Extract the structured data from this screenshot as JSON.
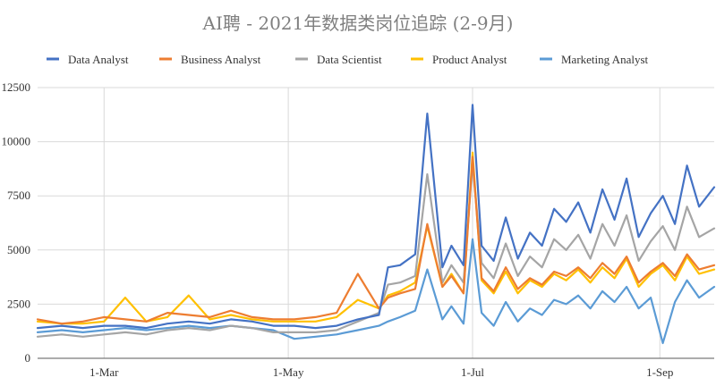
{
  "chart_data": {
    "type": "line",
    "title": "AI聘 - 2021年数据类岗位追踪 (2-9月)",
    "xlabel": "",
    "ylabel": "",
    "x_ticks": [
      "1-Mar",
      "1-May",
      "1-Jul",
      "1-Sep"
    ],
    "x_range": [
      "2021-02-07",
      "2021-09-19"
    ],
    "ylim": [
      0,
      12500
    ],
    "y_ticks": [
      "0",
      "2500",
      "5000",
      "7500",
      "10000",
      "12500"
    ],
    "grid": true,
    "legend_position": "top",
    "colors": {
      "Data Analyst": "#4472c4",
      "Business Analyst": "#ed7d31",
      "Data Scientist": "#a5a5a5",
      "Product Analyst": "#ffc000",
      "Marketing Analyst": "#5b9bd5"
    },
    "series": [
      {
        "name": "Data Analyst",
        "x": [
          "2021-02-07",
          "2021-02-15",
          "2021-02-22",
          "2021-03-01",
          "2021-03-08",
          "2021-03-15",
          "2021-03-22",
          "2021-03-29",
          "2021-04-05",
          "2021-04-12",
          "2021-04-19",
          "2021-04-26",
          "2021-05-03",
          "2021-05-10",
          "2021-05-17",
          "2021-05-24",
          "2021-05-31",
          "2021-06-03",
          "2021-06-07",
          "2021-06-12",
          "2021-06-16",
          "2021-06-21",
          "2021-06-24",
          "2021-06-28",
          "2021-07-01",
          "2021-07-04",
          "2021-07-08",
          "2021-07-12",
          "2021-07-16",
          "2021-07-20",
          "2021-07-24",
          "2021-07-28",
          "2021-08-01",
          "2021-08-05",
          "2021-08-09",
          "2021-08-13",
          "2021-08-17",
          "2021-08-21",
          "2021-08-25",
          "2021-08-29",
          "2021-09-02",
          "2021-09-06",
          "2021-09-10",
          "2021-09-14",
          "2021-09-19"
        ],
        "values": [
          1400,
          1500,
          1400,
          1500,
          1500,
          1400,
          1600,
          1700,
          1600,
          1800,
          1700,
          1500,
          1500,
          1400,
          1500,
          1800,
          2000,
          4200,
          4300,
          4800,
          11300,
          4200,
          5200,
          4300,
          11700,
          5200,
          4500,
          6500,
          4600,
          5800,
          5200,
          6900,
          6300,
          7200,
          5800,
          7800,
          6400,
          8300,
          5600,
          6700,
          7500,
          6200,
          8900,
          7000,
          7900
        ]
      },
      {
        "name": "Business Analyst",
        "x": [
          "2021-02-07",
          "2021-02-15",
          "2021-02-22",
          "2021-03-01",
          "2021-03-08",
          "2021-03-15",
          "2021-03-22",
          "2021-03-29",
          "2021-04-05",
          "2021-04-12",
          "2021-04-19",
          "2021-04-26",
          "2021-05-03",
          "2021-05-10",
          "2021-05-17",
          "2021-05-24",
          "2021-05-31",
          "2021-06-03",
          "2021-06-07",
          "2021-06-12",
          "2021-06-16",
          "2021-06-21",
          "2021-06-24",
          "2021-06-28",
          "2021-07-01",
          "2021-07-04",
          "2021-07-08",
          "2021-07-12",
          "2021-07-16",
          "2021-07-20",
          "2021-07-24",
          "2021-07-28",
          "2021-08-01",
          "2021-08-05",
          "2021-08-09",
          "2021-08-13",
          "2021-08-17",
          "2021-08-21",
          "2021-08-25",
          "2021-08-29",
          "2021-09-02",
          "2021-09-06",
          "2021-09-10",
          "2021-09-14",
          "2021-09-19"
        ],
        "values": [
          1800,
          1600,
          1700,
          1900,
          1800,
          1700,
          2100,
          2000,
          1900,
          2200,
          1900,
          1800,
          1800,
          1900,
          2100,
          3900,
          2300,
          2800,
          3000,
          3200,
          6200,
          3300,
          3800,
          3000,
          9300,
          3700,
          3100,
          4200,
          3200,
          3700,
          3400,
          4000,
          3800,
          4200,
          3700,
          4400,
          3900,
          4700,
          3500,
          4000,
          4400,
          3800,
          4800,
          4100,
          4300
        ]
      },
      {
        "name": "Data Scientist",
        "x": [
          "2021-02-07",
          "2021-02-15",
          "2021-02-22",
          "2021-03-01",
          "2021-03-08",
          "2021-03-15",
          "2021-03-22",
          "2021-03-29",
          "2021-04-05",
          "2021-04-12",
          "2021-04-19",
          "2021-04-26",
          "2021-05-03",
          "2021-05-10",
          "2021-05-17",
          "2021-05-24",
          "2021-05-31",
          "2021-06-03",
          "2021-06-07",
          "2021-06-12",
          "2021-06-16",
          "2021-06-21",
          "2021-06-24",
          "2021-06-28",
          "2021-07-01",
          "2021-07-04",
          "2021-07-08",
          "2021-07-12",
          "2021-07-16",
          "2021-07-20",
          "2021-07-24",
          "2021-07-28",
          "2021-08-01",
          "2021-08-05",
          "2021-08-09",
          "2021-08-13",
          "2021-08-17",
          "2021-08-21",
          "2021-08-25",
          "2021-08-29",
          "2021-09-02",
          "2021-09-06",
          "2021-09-10",
          "2021-09-14",
          "2021-09-19"
        ],
        "values": [
          1000,
          1100,
          1000,
          1100,
          1200,
          1100,
          1300,
          1400,
          1300,
          1500,
          1400,
          1200,
          1200,
          1200,
          1300,
          1700,
          2100,
          3400,
          3500,
          3800,
          8500,
          3500,
          4300,
          3500,
          9000,
          4400,
          3700,
          5300,
          3800,
          4700,
          4200,
          5500,
          5000,
          5700,
          4600,
          6200,
          5200,
          6600,
          4500,
          5400,
          6100,
          5000,
          7000,
          5600,
          6000
        ]
      },
      {
        "name": "Product Analyst",
        "x": [
          "2021-02-07",
          "2021-02-15",
          "2021-02-22",
          "2021-03-01",
          "2021-03-08",
          "2021-03-15",
          "2021-03-22",
          "2021-03-29",
          "2021-04-05",
          "2021-04-12",
          "2021-04-19",
          "2021-04-26",
          "2021-05-03",
          "2021-05-10",
          "2021-05-17",
          "2021-05-24",
          "2021-05-31",
          "2021-06-03",
          "2021-06-07",
          "2021-06-12",
          "2021-06-16",
          "2021-06-21",
          "2021-06-24",
          "2021-06-28",
          "2021-07-01",
          "2021-07-04",
          "2021-07-08",
          "2021-07-12",
          "2021-07-16",
          "2021-07-20",
          "2021-07-24",
          "2021-07-28",
          "2021-08-01",
          "2021-08-05",
          "2021-08-09",
          "2021-08-13",
          "2021-08-17",
          "2021-08-21",
          "2021-08-25",
          "2021-08-29",
          "2021-09-02",
          "2021-09-06",
          "2021-09-10",
          "2021-09-14",
          "2021-09-19"
        ],
        "values": [
          1700,
          1600,
          1600,
          1700,
          2800,
          1700,
          1900,
          2900,
          1800,
          2000,
          1800,
          1700,
          1700,
          1700,
          1900,
          2700,
          2300,
          2900,
          3100,
          3500,
          6100,
          3300,
          3900,
          3000,
          9500,
          3600,
          3000,
          4000,
          3000,
          3600,
          3300,
          3900,
          3600,
          4100,
          3500,
          4200,
          3700,
          4600,
          3300,
          3900,
          4300,
          3600,
          4700,
          3900,
          4100
        ]
      },
      {
        "name": "Marketing Analyst",
        "x": [
          "2021-02-07",
          "2021-02-15",
          "2021-02-22",
          "2021-03-01",
          "2021-03-08",
          "2021-03-15",
          "2021-03-22",
          "2021-03-29",
          "2021-04-05",
          "2021-04-12",
          "2021-04-19",
          "2021-04-26",
          "2021-05-03",
          "2021-05-10",
          "2021-05-17",
          "2021-05-24",
          "2021-05-31",
          "2021-06-03",
          "2021-06-07",
          "2021-06-12",
          "2021-06-16",
          "2021-06-21",
          "2021-06-24",
          "2021-06-28",
          "2021-07-01",
          "2021-07-04",
          "2021-07-08",
          "2021-07-12",
          "2021-07-16",
          "2021-07-20",
          "2021-07-24",
          "2021-07-28",
          "2021-08-01",
          "2021-08-05",
          "2021-08-09",
          "2021-08-13",
          "2021-08-17",
          "2021-08-21",
          "2021-08-25",
          "2021-08-29",
          "2021-09-02",
          "2021-09-06",
          "2021-09-10",
          "2021-09-14",
          "2021-09-19"
        ],
        "values": [
          1200,
          1300,
          1200,
          1300,
          1400,
          1300,
          1400,
          1500,
          1400,
          1500,
          1400,
          1300,
          900,
          1000,
          1100,
          1300,
          1500,
          1700,
          1900,
          2200,
          4100,
          1800,
          2400,
          1600,
          5500,
          2100,
          1500,
          2600,
          1700,
          2300,
          2000,
          2700,
          2500,
          2900,
          2300,
          3100,
          2600,
          3300,
          2300,
          2800,
          700,
          2600,
          3600,
          2800,
          3300
        ]
      }
    ]
  }
}
